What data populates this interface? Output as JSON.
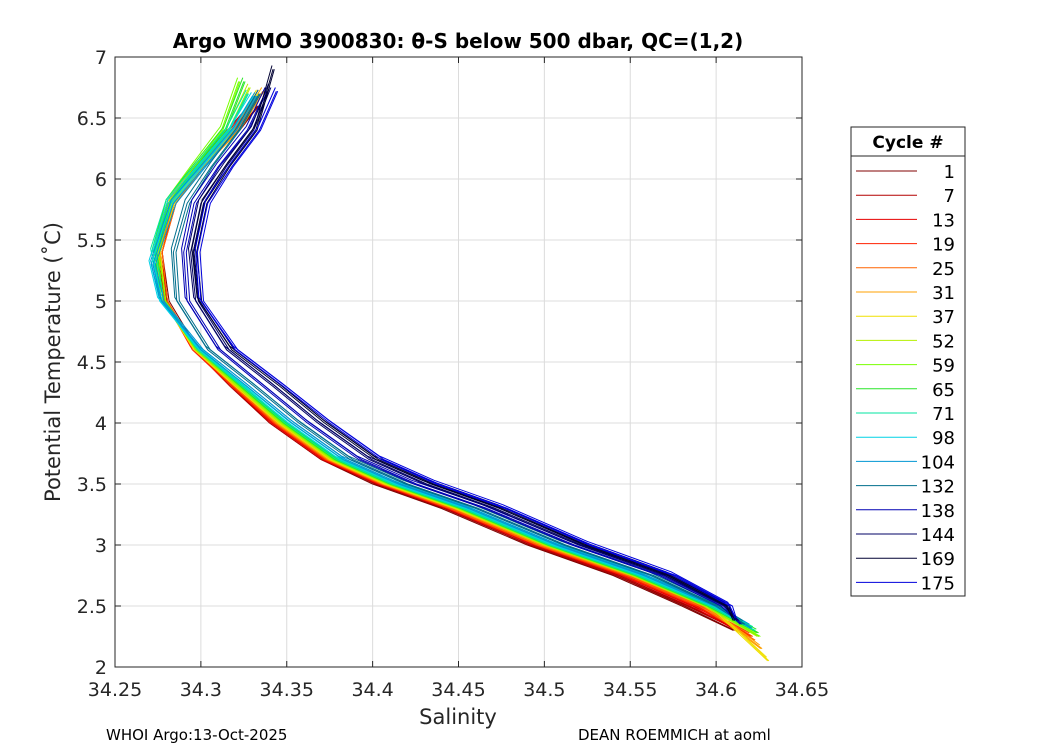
{
  "footer": {
    "left": "WHOI Argo:13-Oct-2025",
    "right": "DEAN ROEMMICH at aoml"
  },
  "chart_data": {
    "type": "line",
    "title": "Argo WMO 3900830: θ-S below 500 dbar,  QC=(1,2)",
    "xlabel": "Salinity",
    "ylabel": "Potential Temperature (˚C)",
    "xlim": [
      34.25,
      34.65
    ],
    "ylim": [
      2,
      7
    ],
    "xticks": [
      "34.25",
      "34.3",
      "34.35",
      "34.4",
      "34.45",
      "34.5",
      "34.55",
      "34.6",
      "34.65"
    ],
    "yticks": [
      "2",
      "2.5",
      "3",
      "3.5",
      "4",
      "4.5",
      "5",
      "5.5",
      "6",
      "6.5",
      "7"
    ],
    "grid": true,
    "legend": {
      "title": "Cycle #",
      "position": "right"
    },
    "series": [
      {
        "name": "1",
        "color": "#800000",
        "x": [
          34.333,
          34.322,
          34.3,
          34.283,
          34.276,
          34.28,
          34.297,
          34.318,
          34.34,
          34.37,
          34.4,
          34.44,
          34.49,
          34.54,
          34.58,
          34.61
        ],
        "y": [
          6.6,
          6.4,
          6.1,
          5.8,
          5.4,
          5.0,
          4.6,
          4.3,
          4.0,
          3.7,
          3.5,
          3.3,
          3.0,
          2.75,
          2.5,
          2.3
        ]
      },
      {
        "name": "7",
        "color": "#b30000",
        "x": [
          34.33,
          34.318,
          34.298,
          34.282,
          34.275,
          34.279,
          34.296,
          34.317,
          34.34,
          34.37,
          34.402,
          34.442,
          34.492,
          34.542,
          34.583,
          34.613
        ],
        "y": [
          6.6,
          6.4,
          6.1,
          5.8,
          5.4,
          5.0,
          4.6,
          4.3,
          4.0,
          3.7,
          3.5,
          3.3,
          3.0,
          2.75,
          2.5,
          2.3
        ]
      },
      {
        "name": "13",
        "color": "#e60000",
        "x": [
          34.331,
          34.319,
          34.299,
          34.283,
          34.276,
          34.279,
          34.296,
          34.318,
          34.341,
          34.371,
          34.403,
          34.443,
          34.494,
          34.545,
          34.586,
          34.618
        ],
        "y": [
          6.62,
          6.4,
          6.1,
          5.8,
          5.4,
          5.0,
          4.6,
          4.3,
          4.0,
          3.7,
          3.5,
          3.3,
          3.0,
          2.75,
          2.5,
          2.25
        ]
      },
      {
        "name": "19",
        "color": "#ff2000",
        "x": [
          34.332,
          34.32,
          34.3,
          34.284,
          34.276,
          34.279,
          34.295,
          34.318,
          34.342,
          34.372,
          34.404,
          34.444,
          34.495,
          34.546,
          34.588,
          34.62
        ],
        "y": [
          6.65,
          6.4,
          6.1,
          5.8,
          5.4,
          5.0,
          4.6,
          4.3,
          4.0,
          3.7,
          3.5,
          3.3,
          3.0,
          2.75,
          2.5,
          2.25
        ]
      },
      {
        "name": "25",
        "color": "#ff6400",
        "x": [
          34.334,
          34.321,
          34.301,
          34.284,
          34.276,
          34.279,
          34.296,
          34.319,
          34.343,
          34.373,
          34.405,
          34.445,
          34.496,
          34.548,
          34.59,
          34.622
        ],
        "y": [
          6.7,
          6.4,
          6.1,
          5.8,
          5.4,
          5.0,
          4.6,
          4.3,
          4.0,
          3.7,
          3.5,
          3.3,
          3.0,
          2.75,
          2.5,
          2.22
        ]
      },
      {
        "name": "31",
        "color": "#ffa000",
        "x": [
          34.336,
          34.322,
          34.301,
          34.283,
          34.275,
          34.278,
          34.296,
          34.32,
          34.344,
          34.374,
          34.406,
          34.447,
          34.498,
          34.55,
          34.593,
          34.626
        ],
        "y": [
          6.72,
          6.4,
          6.1,
          5.8,
          5.4,
          5.0,
          4.6,
          4.3,
          4.0,
          3.7,
          3.5,
          3.3,
          3.0,
          2.75,
          2.5,
          2.15
        ]
      },
      {
        "name": "37",
        "color": "#f0e000",
        "x": [
          34.333,
          34.32,
          34.3,
          34.283,
          34.275,
          34.278,
          34.296,
          34.32,
          34.345,
          34.375,
          34.407,
          34.448,
          34.5,
          34.552,
          34.596,
          34.63
        ],
        "y": [
          6.7,
          6.4,
          6.1,
          5.8,
          5.4,
          5.0,
          4.6,
          4.3,
          4.0,
          3.7,
          3.5,
          3.3,
          3.0,
          2.75,
          2.5,
          2.05
        ]
      },
      {
        "name": "52",
        "color": "#b4f000",
        "x": [
          34.328,
          34.316,
          34.298,
          34.282,
          34.274,
          34.278,
          34.297,
          34.321,
          34.346,
          34.376,
          34.408,
          34.449,
          34.5,
          34.551,
          34.593,
          34.624
        ],
        "y": [
          6.75,
          6.4,
          6.1,
          5.8,
          5.4,
          5.0,
          4.6,
          4.3,
          4.0,
          3.7,
          3.5,
          3.3,
          3.0,
          2.75,
          2.5,
          2.25
        ]
      },
      {
        "name": "59",
        "color": "#78ff00",
        "x": [
          34.322,
          34.312,
          34.296,
          34.281,
          34.274,
          34.278,
          34.297,
          34.322,
          34.347,
          34.377,
          34.409,
          34.45,
          34.501,
          34.552,
          34.594,
          34.625
        ],
        "y": [
          6.8,
          6.4,
          6.1,
          5.8,
          5.4,
          5.0,
          4.6,
          4.3,
          4.0,
          3.7,
          3.5,
          3.3,
          3.0,
          2.75,
          2.5,
          2.25
        ]
      },
      {
        "name": "65",
        "color": "#28e628",
        "x": [
          34.325,
          34.314,
          34.297,
          34.281,
          34.273,
          34.277,
          34.298,
          34.323,
          34.348,
          34.378,
          34.41,
          34.451,
          34.502,
          34.553,
          34.595,
          34.624
        ],
        "y": [
          6.8,
          6.4,
          6.1,
          5.8,
          5.4,
          5.0,
          4.6,
          4.3,
          4.0,
          3.7,
          3.5,
          3.3,
          3.0,
          2.75,
          2.5,
          2.28
        ]
      },
      {
        "name": "71",
        "color": "#00e6a0",
        "x": [
          34.327,
          34.316,
          34.298,
          34.281,
          34.272,
          34.277,
          34.298,
          34.324,
          34.349,
          34.379,
          34.411,
          34.452,
          34.503,
          34.554,
          34.596,
          34.622
        ],
        "y": [
          6.7,
          6.4,
          6.1,
          5.8,
          5.4,
          5.0,
          4.6,
          4.3,
          4.0,
          3.7,
          3.5,
          3.3,
          3.0,
          2.75,
          2.5,
          2.3
        ]
      },
      {
        "name": "98",
        "color": "#00d2e6",
        "x": [
          34.33,
          34.318,
          34.3,
          34.282,
          34.271,
          34.276,
          34.299,
          34.325,
          34.351,
          34.381,
          34.413,
          34.454,
          34.505,
          34.556,
          34.598,
          34.62
        ],
        "y": [
          6.68,
          6.4,
          6.1,
          5.8,
          5.3,
          5.0,
          4.6,
          4.3,
          4.0,
          3.7,
          3.5,
          3.3,
          3.0,
          2.75,
          2.5,
          2.32
        ]
      },
      {
        "name": "104",
        "color": "#0096d2",
        "x": [
          34.332,
          34.32,
          34.302,
          34.284,
          34.272,
          34.277,
          34.3,
          34.327,
          34.353,
          34.383,
          34.415,
          34.456,
          34.507,
          34.558,
          34.599,
          34.62
        ],
        "y": [
          6.68,
          6.4,
          6.1,
          5.8,
          5.3,
          5.0,
          4.6,
          4.3,
          4.0,
          3.7,
          3.5,
          3.3,
          3.0,
          2.75,
          2.5,
          2.32
        ]
      },
      {
        "name": "132",
        "color": "#006e8c",
        "x": [
          34.334,
          34.322,
          34.306,
          34.292,
          34.284,
          34.286,
          34.304,
          34.331,
          34.357,
          34.387,
          34.419,
          34.46,
          34.511,
          34.562,
          34.6,
          34.616
        ],
        "y": [
          6.7,
          6.4,
          6.1,
          5.8,
          5.4,
          5.0,
          4.6,
          4.3,
          4.0,
          3.7,
          3.5,
          3.3,
          3.0,
          2.75,
          2.5,
          2.35
        ]
      },
      {
        "name": "138",
        "color": "#0000b4",
        "x": [
          34.338,
          34.327,
          34.31,
          34.296,
          34.29,
          34.292,
          34.31,
          34.336,
          34.362,
          34.392,
          34.424,
          34.465,
          34.516,
          34.567,
          34.603,
          34.614
        ],
        "y": [
          6.72,
          6.4,
          6.1,
          5.8,
          5.4,
          5.0,
          4.6,
          4.3,
          4.0,
          3.7,
          3.5,
          3.3,
          3.0,
          2.75,
          2.5,
          2.35
        ]
      },
      {
        "name": "144",
        "color": "#000064",
        "x": [
          34.34,
          34.33,
          34.314,
          34.3,
          34.294,
          34.297,
          34.315,
          34.342,
          34.368,
          34.398,
          34.43,
          34.47,
          34.52,
          34.57,
          34.605,
          34.612
        ],
        "y": [
          6.75,
          6.4,
          6.1,
          5.8,
          5.4,
          5.0,
          4.6,
          4.3,
          4.0,
          3.7,
          3.5,
          3.3,
          3.0,
          2.75,
          2.5,
          2.38
        ]
      },
      {
        "name": "169",
        "color": "#000032",
        "x": [
          34.342,
          34.332,
          34.316,
          34.302,
          34.296,
          34.299,
          34.318,
          34.346,
          34.372,
          34.402,
          34.434,
          34.474,
          34.523,
          34.572,
          34.606,
          34.61
        ],
        "y": [
          6.9,
          6.4,
          6.1,
          5.8,
          5.4,
          5.0,
          4.6,
          4.3,
          4.0,
          3.7,
          3.5,
          3.3,
          3.0,
          2.75,
          2.5,
          2.38
        ]
      },
      {
        "name": "175",
        "color": "#0000dc",
        "x": [
          34.344,
          34.334,
          34.318,
          34.304,
          34.298,
          34.3,
          34.32,
          34.348,
          34.375,
          34.405,
          34.437,
          34.477,
          34.526,
          34.575,
          34.608,
          34.611
        ],
        "y": [
          6.72,
          6.4,
          6.1,
          5.8,
          5.4,
          5.0,
          4.6,
          4.3,
          4.0,
          3.7,
          3.5,
          3.3,
          3.0,
          2.75,
          2.5,
          2.4
        ]
      }
    ]
  }
}
